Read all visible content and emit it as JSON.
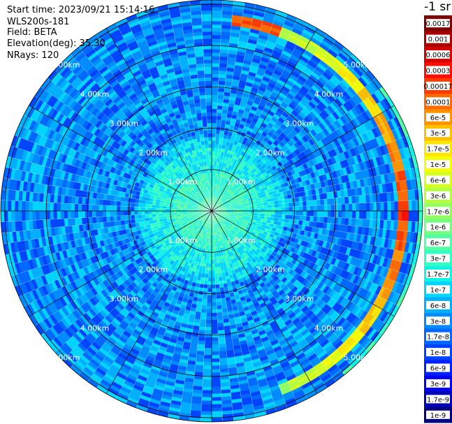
{
  "info": {
    "start_time": "Start time: 2023/09/21 15:14:16",
    "device": "WLS200s-181",
    "field": "Field: BETA",
    "elevation": "Elevation(deg): 35.30",
    "nrays": "NRays: 120"
  },
  "colorbar": {
    "unit": "-1 sr",
    "bands": [
      {
        "label": "0.0017",
        "color": "#7f0000"
      },
      {
        "label": "0.001",
        "color": "#a80000"
      },
      {
        "label": "0.0006",
        "color": "#d40000"
      },
      {
        "label": "0.0003",
        "color": "#ff0d00"
      },
      {
        "label": "0.00017",
        "color": "#ff3a00"
      },
      {
        "label": "0.0001",
        "color": "#ff6a00"
      },
      {
        "label": "6e-5",
        "color": "#ff9400"
      },
      {
        "label": "3e-5",
        "color": "#ffbe00"
      },
      {
        "label": "1.7e-5",
        "color": "#ffe600"
      },
      {
        "label": "1e-5",
        "color": "#f4ff00"
      },
      {
        "label": "6e-6",
        "color": "#d4ff20"
      },
      {
        "label": "3e-6",
        "color": "#b3ff43"
      },
      {
        "label": "1.7e-6",
        "color": "#93ff63"
      },
      {
        "label": "1e-6",
        "color": "#74ff83"
      },
      {
        "label": "6e-7",
        "color": "#53ffa3"
      },
      {
        "label": "3e-7",
        "color": "#33ffc3"
      },
      {
        "label": "1.7e-7",
        "color": "#14f3e3"
      },
      {
        "label": "1e-7",
        "color": "#00d4ff"
      },
      {
        "label": "6e-8",
        "color": "#00b0ff"
      },
      {
        "label": "3e-8",
        "color": "#008cff"
      },
      {
        "label": "1.7e-8",
        "color": "#0068ff"
      },
      {
        "label": "1e-8",
        "color": "#0044ff"
      },
      {
        "label": "6e-9",
        "color": "#0020ff"
      },
      {
        "label": "3e-9",
        "color": "#0000f0"
      },
      {
        "label": "1.7e-9",
        "color": "#0000b8"
      },
      {
        "label": "1e-9",
        "color": "#000080"
      }
    ]
  },
  "chart_data": {
    "type": "polar-ppi",
    "field": "BETA",
    "elevation_deg": 35.3,
    "n_rays": 120,
    "range_rings_km": [
      1.0,
      2.0,
      3.0,
      4.0,
      5.0
    ],
    "ring_labels": [
      "1.00km",
      "2.00km",
      "3.00km",
      "4.00km",
      "5.00km"
    ],
    "radial_lines_deg": [
      0,
      30,
      60,
      90,
      120,
      150,
      180,
      210,
      240,
      270,
      300,
      330
    ],
    "background_level": "3e-8",
    "near_range_level": "6e-7",
    "cloud_arc": {
      "range_km": 4.65,
      "azimuth_from_deg": 5,
      "azimuth_to_deg": 160,
      "peak_azimuth_deg": 90,
      "peak_level": "0.0003",
      "edge_level": "1.7e-6"
    },
    "outer_arc": {
      "range_km": 5.1,
      "azimuth_from_deg": 55,
      "azimuth_to_deg": 140,
      "level": "6e-7"
    }
  }
}
